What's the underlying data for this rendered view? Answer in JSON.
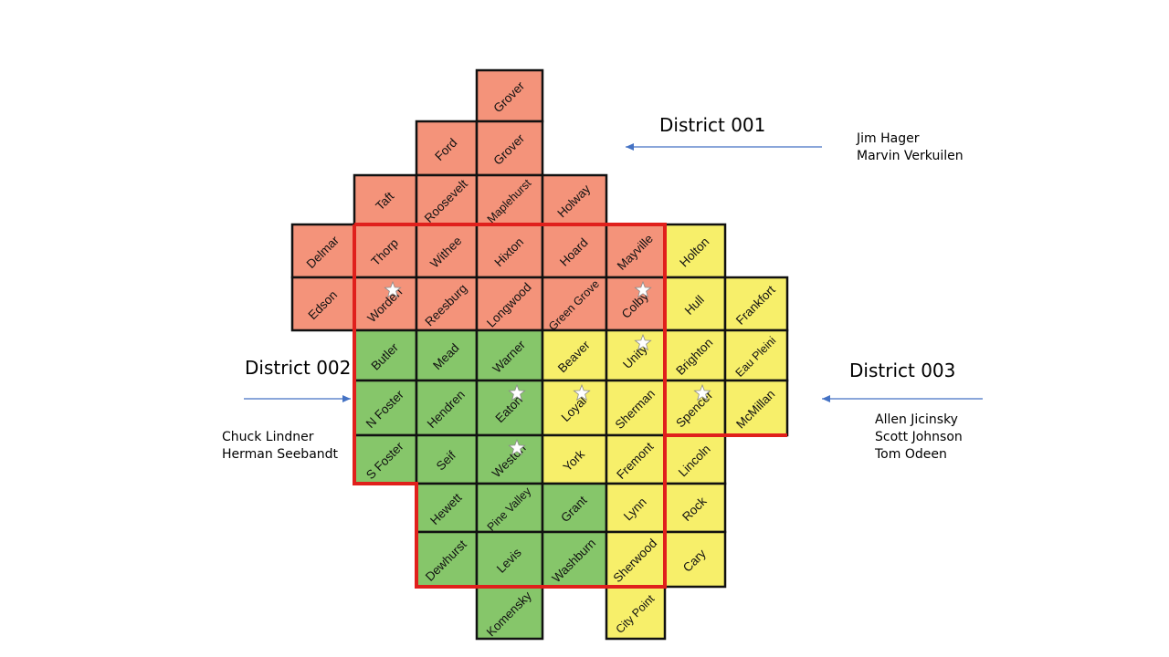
{
  "colors": {
    "district_001": "#f4937a",
    "district_002": "#86c66a",
    "district_003": "#f7ef6a",
    "grid_border": "#111111",
    "boundary": "#e0201c",
    "arrow": "#4472c4"
  },
  "districts": [
    {
      "id": "001",
      "label": "District 001",
      "members": [
        "Jim Hager",
        "Marvin Verkuilen"
      ]
    },
    {
      "id": "002",
      "label": "District 002",
      "members": [
        "Chuck Lindner",
        "Herman Seebandt"
      ]
    },
    {
      "id": "003",
      "label": "District 003",
      "members": [
        "Allen Jicinsky",
        "Scott Johnson",
        "Tom Odeen"
      ]
    }
  ],
  "towns": [
    {
      "name": "Grover",
      "row": 0,
      "col": 3,
      "district": "001",
      "star": false
    },
    {
      "name": "Ford",
      "row": 1,
      "col": 2,
      "district": "001",
      "star": false
    },
    {
      "name": "Grover",
      "row": 1,
      "col": 3,
      "district": "001",
      "star": false
    },
    {
      "name": "Taft",
      "row": 2,
      "col": 1,
      "district": "001",
      "star": false
    },
    {
      "name": "Roosevelt",
      "row": 2,
      "col": 2,
      "district": "001",
      "star": false
    },
    {
      "name": "Maplehurst",
      "row": 2,
      "col": 3,
      "district": "001",
      "star": false
    },
    {
      "name": "Holway",
      "row": 2,
      "col": 4,
      "district": "001",
      "star": false
    },
    {
      "name": "Delmar",
      "row": 3,
      "col": 0,
      "district": "001",
      "star": false
    },
    {
      "name": "Thorp",
      "row": 3,
      "col": 1,
      "district": "001",
      "star": false
    },
    {
      "name": "Withee",
      "row": 3,
      "col": 2,
      "district": "001",
      "star": false
    },
    {
      "name": "Hixton",
      "row": 3,
      "col": 3,
      "district": "001",
      "star": false
    },
    {
      "name": "Hoard",
      "row": 3,
      "col": 4,
      "district": "001",
      "star": false
    },
    {
      "name": "Mayville",
      "row": 3,
      "col": 5,
      "district": "001",
      "star": false
    },
    {
      "name": "Holton",
      "row": 3,
      "col": 6,
      "district": "003",
      "star": false
    },
    {
      "name": "Edson",
      "row": 4,
      "col": 0,
      "district": "001",
      "star": false
    },
    {
      "name": "Worden",
      "row": 4,
      "col": 1,
      "district": "001",
      "star": true
    },
    {
      "name": "Reesburg",
      "row": 4,
      "col": 2,
      "district": "001",
      "star": false
    },
    {
      "name": "Longwood",
      "row": 4,
      "col": 3,
      "district": "001",
      "star": false
    },
    {
      "name": "Green Grove",
      "row": 4,
      "col": 4,
      "district": "001",
      "star": false
    },
    {
      "name": "Colby",
      "row": 4,
      "col": 5,
      "district": "001",
      "star": true
    },
    {
      "name": "Hull",
      "row": 4,
      "col": 6,
      "district": "003",
      "star": false
    },
    {
      "name": "Frankfort",
      "row": 4,
      "col": 7,
      "district": "003",
      "star": false
    },
    {
      "name": "Butler",
      "row": 5,
      "col": 1,
      "district": "002",
      "star": false
    },
    {
      "name": "Mead",
      "row": 5,
      "col": 2,
      "district": "002",
      "star": false
    },
    {
      "name": "Warner",
      "row": 5,
      "col": 3,
      "district": "002",
      "star": false
    },
    {
      "name": "Beaver",
      "row": 5,
      "col": 4,
      "district": "003",
      "star": false
    },
    {
      "name": "Unity",
      "row": 5,
      "col": 5,
      "district": "003",
      "star": true
    },
    {
      "name": "Brighton",
      "row": 5,
      "col": 6,
      "district": "003",
      "star": false
    },
    {
      "name": "Eau Pleini",
      "row": 5,
      "col": 7,
      "district": "003",
      "star": false
    },
    {
      "name": "N Foster",
      "row": 6,
      "col": 1,
      "district": "002",
      "star": false
    },
    {
      "name": "Hendren",
      "row": 6,
      "col": 2,
      "district": "002",
      "star": false
    },
    {
      "name": "Eaton",
      "row": 6,
      "col": 3,
      "district": "002",
      "star": true
    },
    {
      "name": "Loyal",
      "row": 6,
      "col": 4,
      "district": "003",
      "star": true
    },
    {
      "name": "Sherman",
      "row": 6,
      "col": 5,
      "district": "003",
      "star": false
    },
    {
      "name": "Spencer",
      "row": 6,
      "col": 6,
      "district": "003",
      "star": true
    },
    {
      "name": "McMillan",
      "row": 6,
      "col": 7,
      "district": "003",
      "star": false
    },
    {
      "name": "S Foster",
      "row": 7,
      "col": 1,
      "district": "002",
      "star": false
    },
    {
      "name": "Seif",
      "row": 7,
      "col": 2,
      "district": "002",
      "star": false
    },
    {
      "name": "Weston",
      "row": 7,
      "col": 3,
      "district": "002",
      "star": true
    },
    {
      "name": "York",
      "row": 7,
      "col": 4,
      "district": "003",
      "star": false
    },
    {
      "name": "Fremont",
      "row": 7,
      "col": 5,
      "district": "003",
      "star": false
    },
    {
      "name": "Lincoln",
      "row": 7,
      "col": 6,
      "district": "003",
      "star": false
    },
    {
      "name": "Hewett",
      "row": 8,
      "col": 2,
      "district": "002",
      "star": false
    },
    {
      "name": "Pine Valley",
      "row": 8,
      "col": 3,
      "district": "002",
      "star": false
    },
    {
      "name": "Grant",
      "row": 8,
      "col": 4,
      "district": "002",
      "star": false
    },
    {
      "name": "Lynn",
      "row": 8,
      "col": 5,
      "district": "003",
      "star": false
    },
    {
      "name": "Rock",
      "row": 8,
      "col": 6,
      "district": "003",
      "star": false
    },
    {
      "name": "Dewhurst",
      "row": 9,
      "col": 2,
      "district": "002",
      "star": false
    },
    {
      "name": "Levis",
      "row": 9,
      "col": 3,
      "district": "002",
      "star": false
    },
    {
      "name": "Washburn",
      "row": 9,
      "col": 4,
      "district": "002",
      "star": false
    },
    {
      "name": "Sherwood",
      "row": 9,
      "col": 5,
      "district": "003",
      "star": false
    },
    {
      "name": "Cary",
      "row": 9,
      "col": 6,
      "district": "003",
      "star": false
    },
    {
      "name": "Komensky",
      "row": 10,
      "col": 3,
      "district": "002",
      "star": false
    },
    {
      "name": "City Point",
      "row": 10,
      "col": 5,
      "district": "003",
      "star": false
    }
  ]
}
